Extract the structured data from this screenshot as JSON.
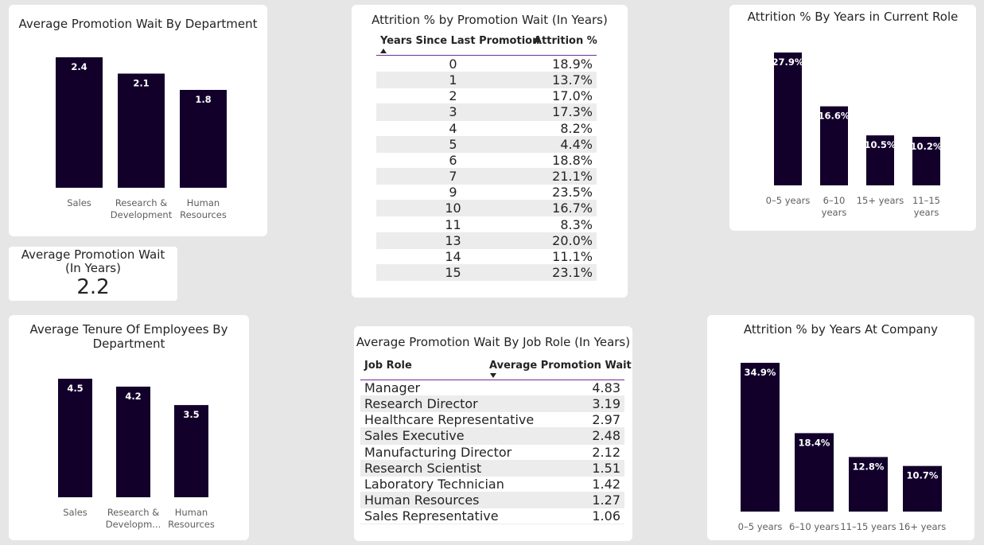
{
  "cards": {
    "promo_dept_title": "Average Promotion Wait By Department",
    "attr_promo_title": "Attrition % by Promotion Wait (In Years)",
    "attr_role_title": "Attrition % By Years in Current Role",
    "kpi_label_1": "Average Promotion Wait",
    "kpi_label_2": "(In Years)",
    "kpi_value": "2.2",
    "tenure_title_1": "Average Tenure Of Employees By",
    "tenure_title_2": "Department",
    "jobrole_title": "Average Promotion Wait By Job Role (In Years)",
    "attr_company_title": "Attrition % by Years At Company"
  },
  "colors": {
    "bar": "#12002b",
    "accent": "#6b2d9b",
    "stripe": "#ececec"
  },
  "attr_promo_table": {
    "headers": [
      "Years Since Last Promotion",
      "Attrition %"
    ],
    "sort_icon": "sort-ascending-icon",
    "rows": [
      [
        "0",
        "18.9%"
      ],
      [
        "1",
        "13.7%"
      ],
      [
        "2",
        "17.0%"
      ],
      [
        "3",
        "17.3%"
      ],
      [
        "4",
        "8.2%"
      ],
      [
        "5",
        "4.4%"
      ],
      [
        "6",
        "18.8%"
      ],
      [
        "7",
        "21.1%"
      ],
      [
        "9",
        "23.5%"
      ],
      [
        "10",
        "16.7%"
      ],
      [
        "11",
        "8.3%"
      ],
      [
        "13",
        "20.0%"
      ],
      [
        "14",
        "11.1%"
      ],
      [
        "15",
        "23.1%"
      ]
    ]
  },
  "jobrole_table": {
    "headers": [
      "Job Role",
      "Average Promotion Wait"
    ],
    "sort_icon": "sort-descending-icon",
    "rows": [
      [
        "Manager",
        "4.83"
      ],
      [
        "Research Director",
        "3.19"
      ],
      [
        "Healthcare Representative",
        "2.97"
      ],
      [
        "Sales Executive",
        "2.48"
      ],
      [
        "Manufacturing Director",
        "2.12"
      ],
      [
        "Research Scientist",
        "1.51"
      ],
      [
        "Laboratory Technician",
        "1.42"
      ],
      [
        "Human Resources",
        "1.27"
      ],
      [
        "Sales Representative",
        "1.06"
      ]
    ]
  },
  "chart_data": [
    {
      "id": "promo_dept",
      "type": "bar",
      "title": "Average Promotion Wait By Department",
      "categories": [
        [
          "Sales"
        ],
        [
          "Research &",
          "Development"
        ],
        [
          "Human",
          "Resources"
        ]
      ],
      "values": [
        2.4,
        2.1,
        1.8
      ],
      "labels": [
        "2.4",
        "2.1",
        "1.8"
      ],
      "ylim": [
        0,
        2.4
      ],
      "grid": false
    },
    {
      "id": "attr_role",
      "type": "bar",
      "title": "Attrition % By Years in Current Role",
      "categories": [
        [
          "0–5 years"
        ],
        [
          "6–10",
          "years"
        ],
        [
          "15+ years"
        ],
        [
          "11–15",
          "years"
        ]
      ],
      "values": [
        27.9,
        16.6,
        10.5,
        10.2
      ],
      "labels": [
        "27.9%",
        "16.6%",
        "10.5%",
        "10.2%"
      ],
      "ylim": [
        0,
        27.9
      ],
      "grid": false
    },
    {
      "id": "tenure",
      "type": "bar",
      "title": "Average Tenure Of Employees By Department",
      "categories": [
        [
          "Sales"
        ],
        [
          "Research &",
          "Developm..."
        ],
        [
          "Human",
          "Resources"
        ]
      ],
      "values": [
        4.5,
        4.2,
        3.5
      ],
      "labels": [
        "4.5",
        "4.2",
        "3.5"
      ],
      "ylim": [
        0,
        4.5
      ],
      "grid": false
    },
    {
      "id": "attr_company",
      "type": "bar",
      "title": "Attrition % by Years At Company",
      "categories": [
        [
          "0–5 years"
        ],
        [
          "6–10 years"
        ],
        [
          "11–15 years"
        ],
        [
          "16+ years"
        ]
      ],
      "values": [
        34.9,
        18.4,
        12.8,
        10.7
      ],
      "labels": [
        "34.9%",
        "18.4%",
        "12.8%",
        "10.7%"
      ],
      "ylim": [
        0,
        34.9
      ],
      "grid": false
    }
  ]
}
